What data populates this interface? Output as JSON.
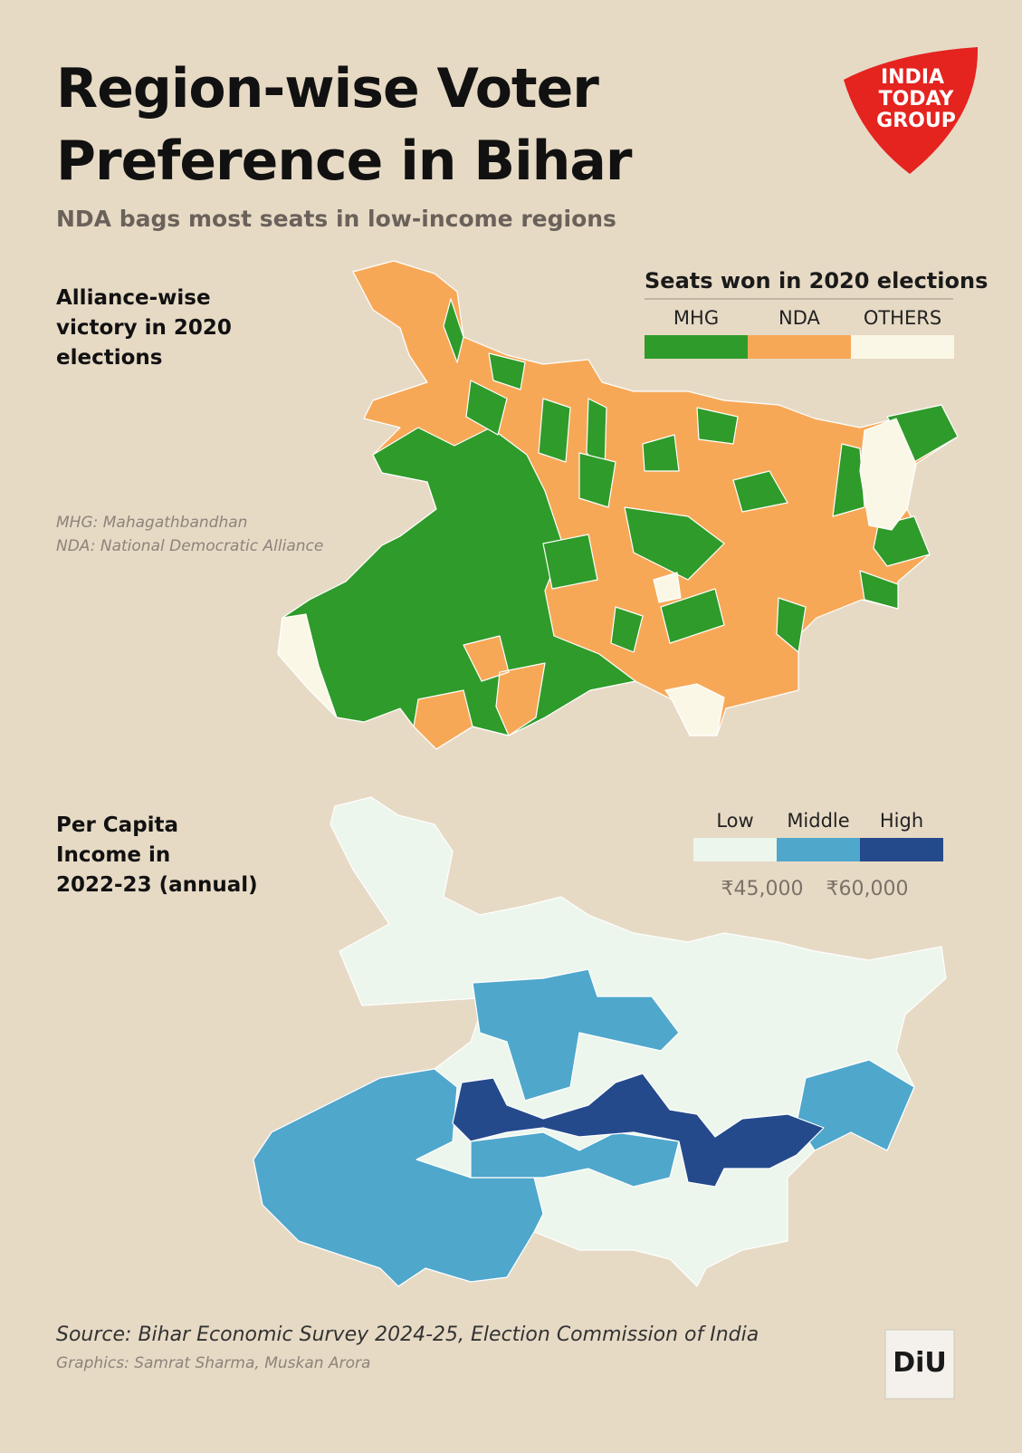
{
  "header": {
    "title": [
      "Region-wise Voter",
      "Preference in Bihar"
    ],
    "subtitle": "NDA bags most seats in low-income regions",
    "logo": [
      "INDIA",
      "TODAY",
      "GROUP"
    ]
  },
  "map1": {
    "label": [
      "Alliance-wise",
      "victory in 2020",
      "elections"
    ],
    "legend_title": "Seats won in 2020 elections",
    "legend": [
      {
        "label": "MHG",
        "color": "#2f9b2a"
      },
      {
        "label": "NDA",
        "color": "#f7a857"
      },
      {
        "label": "OTHERS",
        "color": "#fbf7e6"
      }
    ],
    "notes": [
      "MHG: Mahagathbandhan",
      "NDA: National Democratic Alliance"
    ]
  },
  "map2": {
    "label": [
      "Per Capita",
      "Income in",
      "2022-23 (annual)"
    ],
    "legend": [
      {
        "label": "Low",
        "color": "#ecf6ec"
      },
      {
        "label": "Middle",
        "color": "#4fa7cc"
      },
      {
        "label": "High",
        "color": "#244a8c"
      }
    ],
    "thresholds": [
      "₹45,000",
      "₹60,000"
    ]
  },
  "footer": {
    "source": "Source: Bihar Economic Survey 2024-25, Election Commission of India",
    "credits": "Graphics: Samrat Sharma, Muskan Arora",
    "badge": "DiU"
  }
}
